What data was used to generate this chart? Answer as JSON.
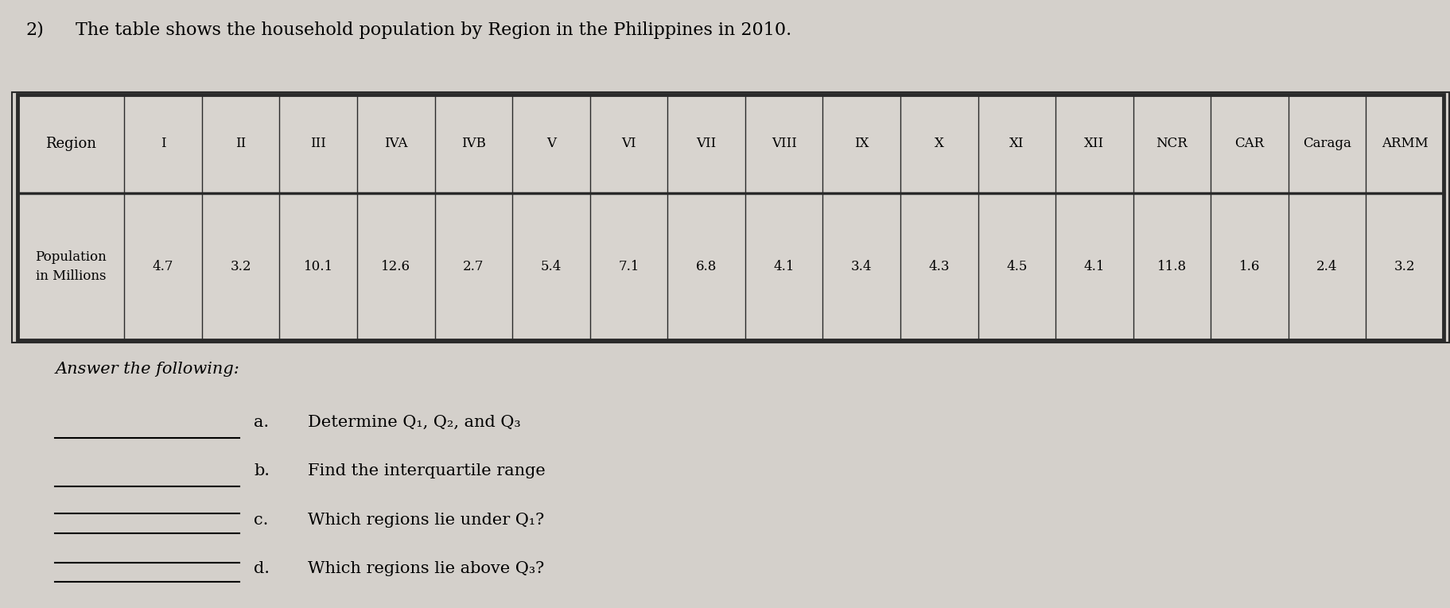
{
  "title_number": "2)",
  "title_text": "The table shows the household population by Region in the Philippines in 2010.",
  "regions": [
    "Region",
    "I",
    "II",
    "III",
    "IVA",
    "IVB",
    "V",
    "VI",
    "VII",
    "VIII",
    "IX",
    "X",
    "XI",
    "XII",
    "NCR",
    "CAR",
    "Caraga",
    "ARMM"
  ],
  "row_label": "Population\nin Millions",
  "values": [
    "4.7",
    "3.2",
    "10.1",
    "12.6",
    "2.7",
    "5.4",
    "7.1",
    "6.8",
    "4.1",
    "3.4",
    "4.3",
    "4.5",
    "4.1",
    "11.8",
    "1.6",
    "2.4",
    "3.2"
  ],
  "answer_label": "Answer the following:",
  "questions": [
    {
      "letter": "a.",
      "text": "Determine Q₁, Q₂, and Q₃",
      "lines": 1
    },
    {
      "letter": "b.",
      "text": "Find the interquartile range",
      "lines": 1
    },
    {
      "letter": "c.",
      "text": "Which regions lie under Q₁?",
      "lines": 2
    },
    {
      "letter": "d.",
      "text": "Which regions lie above Q₃?",
      "lines": 2
    }
  ],
  "bg_color": "#d4d0cb",
  "table_bg": "#d8d4cf",
  "line_color": "#2a2a2a",
  "font_family": "DejaVu Serif"
}
